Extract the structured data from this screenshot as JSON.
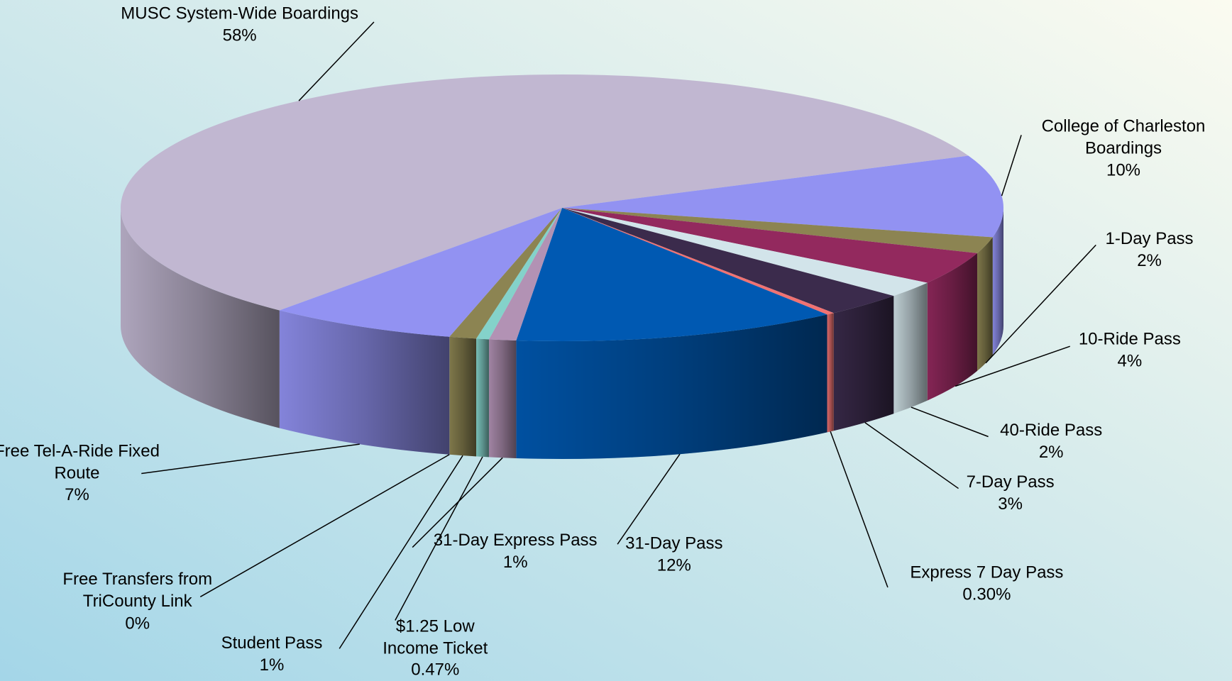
{
  "chart_data": {
    "type": "pie3d",
    "categories": [
      "MUSC System-Wide Boardings",
      "College of Charleston Boardings",
      "1-Day Pass",
      "10-Ride Pass",
      "40-Ride Pass",
      "7-Day Pass",
      "Express 7 Day Pass",
      "31-Day Pass",
      "31-Day Express Pass",
      "$1.25 Low Income Ticket",
      "Student Pass",
      "Free Transfers from TriCounty Link",
      "Free Tel-A-Ride Fixed Route"
    ],
    "values": [
      58,
      10,
      2,
      4,
      2,
      3,
      0.3,
      12,
      1,
      0.47,
      1,
      0,
      7
    ],
    "value_labels": [
      "58%",
      "10%",
      "2%",
      "4%",
      "2%",
      "3%",
      "0.30%",
      "12%",
      "1%",
      "0.47%",
      "1%",
      "0%",
      "7%"
    ],
    "colors": [
      "#c1b7d1",
      "#9292f2",
      "#8c8452",
      "#93295e",
      "#d2e4ea",
      "#3b2b4c",
      "#f07272",
      "#0059b2",
      "#b292b4",
      "#84d2ca",
      "#8c8452",
      "#4a7cba",
      "#9292f2"
    ]
  }
}
